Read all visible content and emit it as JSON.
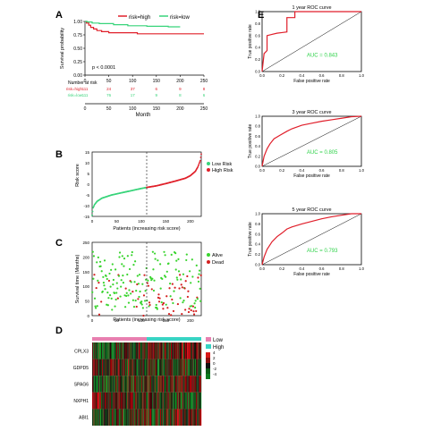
{
  "colors": {
    "high": "#e0202a",
    "low": "#38d47a",
    "alive": "#39d42e",
    "dead": "#d42020",
    "roc": "#e01e2a",
    "auc": "#2fd24a",
    "heat_low": "#0b7a1e",
    "heat_high": "#d81818"
  },
  "panel_labels": {
    "a": "A",
    "b": "B",
    "c": "C",
    "d": "D",
    "e": "E"
  },
  "km": {
    "legend": {
      "high": "risk=high",
      "low": "risk=low"
    },
    "ylabel": "Survival probability",
    "xlabel": "Month",
    "pvalue": "p < 0.0001",
    "risk_title": "Number at risk",
    "yticks": [
      "1.00",
      "0.75",
      "0.50",
      "0.25",
      "0.00"
    ],
    "xticks": [
      "0",
      "50",
      "100",
      "150",
      "200",
      "250"
    ],
    "risk_rows": [
      {
        "label": "risk=high",
        "values": [
          "111",
          "24",
          "37",
          "6",
          "9",
          "8"
        ]
      },
      {
        "label": "risk=low",
        "values": [
          "111",
          "76",
          "17",
          "9",
          "8",
          "6"
        ]
      }
    ]
  },
  "chart_data": [
    {
      "type": "line",
      "title": "",
      "xlabel": "Month",
      "ylabel": "Survival probability",
      "xlim": [
        0,
        250
      ],
      "ylim": [
        0,
        1
      ],
      "series": [
        {
          "name": "risk=high",
          "x": [
            0,
            3,
            8,
            12,
            18,
            25,
            35,
            50,
            70,
            90,
            110,
            250
          ],
          "y": [
            1.0,
            0.97,
            0.93,
            0.89,
            0.86,
            0.83,
            0.81,
            0.79,
            0.79,
            0.79,
            0.77,
            0.77
          ]
        },
        {
          "name": "risk=low",
          "x": [
            0,
            5,
            15,
            30,
            60,
            90,
            130,
            175,
            200
          ],
          "y": [
            1.0,
            0.99,
            0.97,
            0.96,
            0.94,
            0.92,
            0.91,
            0.9,
            0.9
          ]
        }
      ]
    },
    {
      "type": "line",
      "title": "",
      "xlabel": "Patients (increasing risk score)",
      "ylabel": "Risk score",
      "xlim": [
        0,
        222
      ],
      "ylim": [
        -15,
        15
      ],
      "legend": [
        "Low Risk",
        "High Risk"
      ],
      "yticks": [
        "15",
        "10",
        "5",
        "0",
        "-5",
        "-10",
        "-15"
      ],
      "xticks": [
        "0",
        "50",
        "100",
        "150",
        "200"
      ],
      "cutoff_x": 111,
      "series": [
        {
          "name": "Low Risk",
          "x": [
            0,
            2,
            5,
            10,
            20,
            40,
            60,
            80,
            100,
            111
          ],
          "y": [
            -14.5,
            -11,
            -9.5,
            -8,
            -6.5,
            -5,
            -4,
            -3,
            -2,
            -1.5
          ]
        },
        {
          "name": "High Risk",
          "x": [
            111,
            130,
            150,
            170,
            190,
            200,
            210,
            215,
            220,
            222
          ],
          "y": [
            -1.5,
            -0.8,
            0.3,
            1.5,
            2.8,
            4,
            6,
            8,
            11,
            14
          ]
        }
      ]
    },
    {
      "type": "scatter",
      "title": "",
      "xlabel": "Patients (increasing risk score)",
      "ylabel": "Survival time (Months)",
      "xlim": [
        0,
        222
      ],
      "ylim": [
        0,
        250
      ],
      "legend": [
        "Alive",
        "Dead"
      ],
      "yticks": [
        "0",
        "50",
        "100",
        "150",
        "200",
        "250"
      ],
      "xticks": [
        "0",
        "50",
        "100",
        "150",
        "200"
      ],
      "cutoff_x": 111,
      "points_seed": 7,
      "n_points": 222
    },
    {
      "type": "heatmap",
      "title": "",
      "rows": [
        "CPLX3",
        "GDPD5",
        "SPAG6",
        "NXPH1",
        "ABI1"
      ],
      "columns": 222,
      "legend_groups": [
        "Low",
        "High"
      ],
      "scale_ticks": [
        "4",
        "2",
        "0",
        "-2",
        "-4"
      ]
    },
    {
      "type": "line",
      "title": "1 year ROC curve",
      "xlabel": "False positive rate",
      "ylabel": "True positive rate",
      "xlim": [
        0,
        1
      ],
      "ylim": [
        0,
        1
      ],
      "auc_label": "AUC = 0.843",
      "x": [
        0,
        0.02,
        0.05,
        0.05,
        0.1,
        0.15,
        0.2,
        0.25,
        0.25,
        0.33,
        0.33,
        0.6,
        1.0
      ],
      "y": [
        0,
        0.3,
        0.35,
        0.6,
        0.62,
        0.64,
        0.65,
        0.66,
        0.9,
        0.9,
        1.0,
        1.0,
        1.0
      ]
    },
    {
      "type": "line",
      "title": "3 year ROC curve",
      "xlabel": "False positive rate",
      "ylabel": "True positive rate",
      "xlim": [
        0,
        1
      ],
      "ylim": [
        0,
        1
      ],
      "auc_label": "AUC = 0.805",
      "x": [
        0,
        0.02,
        0.05,
        0.08,
        0.12,
        0.18,
        0.25,
        0.3,
        0.4,
        0.5,
        0.6,
        0.7,
        0.8,
        0.9,
        1.0
      ],
      "y": [
        0,
        0.2,
        0.35,
        0.45,
        0.55,
        0.62,
        0.7,
        0.75,
        0.82,
        0.86,
        0.9,
        0.93,
        0.96,
        0.99,
        1.0
      ]
    },
    {
      "type": "line",
      "title": "5 year ROC curve",
      "xlabel": "False positive rate",
      "ylabel": "True positive rate",
      "xlim": [
        0,
        1
      ],
      "ylim": [
        0,
        1
      ],
      "auc_label": "AUC = 0.793",
      "x": [
        0,
        0.02,
        0.05,
        0.1,
        0.15,
        0.2,
        0.25,
        0.3,
        0.4,
        0.5,
        0.6,
        0.7,
        0.8,
        0.9,
        1.0
      ],
      "y": [
        0,
        0.15,
        0.3,
        0.45,
        0.55,
        0.62,
        0.7,
        0.74,
        0.8,
        0.85,
        0.9,
        0.94,
        0.97,
        1.0,
        1.0
      ]
    }
  ],
  "roc_ticks": [
    "0.0",
    "0.2",
    "0.4",
    "0.6",
    "0.8",
    "1.0"
  ]
}
